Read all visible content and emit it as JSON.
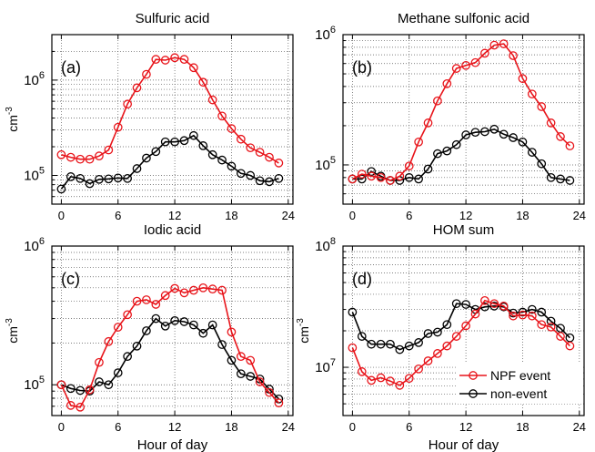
{
  "figure": {
    "xlabel": "Hour of day",
    "colors": {
      "npf": "#e8141a",
      "non": "#000000"
    }
  },
  "chart_data": [
    {
      "id": "a",
      "type": "line",
      "title": "Sulfuric acid",
      "panel_label": "(a)",
      "ylabel": "cm",
      "ylabel_exp": "-3",
      "yscale": "log",
      "ylim": [
        50000,
        3000000
      ],
      "yticks": [
        {
          "base": "10",
          "exp": "5",
          "value": 100000
        },
        {
          "base": "10",
          "exp": "6",
          "value": 1000000
        }
      ],
      "xlim": [
        -1,
        24.5
      ],
      "xticks": [
        0,
        6,
        12,
        18,
        24
      ],
      "xlabel": "",
      "x": [
        0,
        1,
        2,
        3,
        4,
        5,
        6,
        7,
        8,
        9,
        10,
        11,
        12,
        13,
        14,
        15,
        16,
        17,
        18,
        19,
        20,
        21,
        22,
        23
      ],
      "series": [
        {
          "key": "npf",
          "values": [
            165000,
            155000,
            148000,
            148000,
            160000,
            185000,
            320000,
            560000,
            830000,
            1150000,
            1650000,
            1620000,
            1720000,
            1650000,
            1350000,
            950000,
            620000,
            420000,
            310000,
            240000,
            195000,
            175000,
            155000,
            135000
          ]
        },
        {
          "key": "non",
          "values": [
            72000,
            97000,
            93000,
            82000,
            91000,
            92000,
            94000,
            93000,
            118000,
            152000,
            178000,
            225000,
            225000,
            232000,
            262000,
            205000,
            165000,
            145000,
            125000,
            105000,
            100000,
            88000,
            86000,
            93000
          ]
        }
      ],
      "legend": null
    },
    {
      "id": "b",
      "type": "line",
      "title": "Methane sulfonic acid",
      "panel_label": "(b)",
      "ylabel": "",
      "ylabel_exp": "",
      "yscale": "log",
      "ylim": [
        50000,
        1000000
      ],
      "yticks": [
        {
          "base": "10",
          "exp": "5",
          "value": 100000
        },
        {
          "base": "10",
          "exp": "6",
          "value": 1000000
        }
      ],
      "xlim": [
        -1,
        24.5
      ],
      "xticks": [
        0,
        6,
        12,
        18,
        24
      ],
      "xlabel": "",
      "x": [
        0,
        1,
        2,
        3,
        4,
        5,
        6,
        7,
        8,
        9,
        10,
        11,
        12,
        13,
        14,
        15,
        16,
        17,
        18,
        19,
        20,
        21,
        22,
        23
      ],
      "series": [
        {
          "key": "npf",
          "values": [
            78000,
            85000,
            82000,
            80000,
            76000,
            82000,
            98000,
            150000,
            210000,
            310000,
            420000,
            550000,
            580000,
            610000,
            720000,
            830000,
            850000,
            690000,
            460000,
            350000,
            280000,
            210000,
            165000,
            140000
          ]
        },
        {
          "key": "non",
          "values": [
            78000,
            78000,
            89000,
            82000,
            76000,
            76000,
            80000,
            78000,
            93000,
            122000,
            128000,
            143000,
            170000,
            178000,
            180000,
            188000,
            172000,
            162000,
            150000,
            125000,
            102000,
            80000,
            78000,
            76000
          ]
        }
      ],
      "legend": null
    },
    {
      "id": "c",
      "type": "line",
      "title": "Iodic acid",
      "panel_label": "(c)",
      "ylabel": "cm",
      "ylabel_exp": "-3",
      "yscale": "log",
      "ylim": [
        60000,
        1000000
      ],
      "yticks": [
        {
          "base": "10",
          "exp": "5",
          "value": 100000
        },
        {
          "base": "10",
          "exp": "6",
          "value": 1000000
        }
      ],
      "xlim": [
        -1,
        24.5
      ],
      "xticks": [
        0,
        6,
        12,
        18,
        24
      ],
      "xlabel": "Hour of day",
      "x": [
        0,
        1,
        2,
        3,
        4,
        5,
        6,
        7,
        8,
        9,
        10,
        11,
        12,
        13,
        14,
        15,
        16,
        17,
        18,
        19,
        20,
        21,
        22,
        23
      ],
      "series": [
        {
          "key": "npf",
          "values": [
            100000,
            71000,
            69000,
            92000,
            145000,
            205000,
            260000,
            320000,
            400000,
            410000,
            380000,
            440000,
            495000,
            460000,
            480000,
            500000,
            490000,
            480000,
            240000,
            160000,
            150000,
            105000,
            88000,
            74000
          ]
        },
        {
          "key": "non",
          "values": [
            100000,
            94000,
            91000,
            90000,
            105000,
            100000,
            122000,
            160000,
            190000,
            245000,
            300000,
            265000,
            290000,
            285000,
            270000,
            235000,
            270000,
            195000,
            150000,
            120000,
            115000,
            110000,
            93000,
            79000
          ]
        }
      ],
      "legend": null
    },
    {
      "id": "d",
      "type": "line",
      "title": "HOM sum",
      "panel_label": "(d)",
      "ylabel": "cm",
      "ylabel_exp": "-3",
      "yscale": "log",
      "ylim": [
        4000000,
        100000000
      ],
      "yticks": [
        {
          "base": "10",
          "exp": "7",
          "value": 10000000
        },
        {
          "base": "10",
          "exp": "8",
          "value": 100000000
        }
      ],
      "xlim": [
        -1,
        24.5
      ],
      "xticks": [
        0,
        6,
        12,
        18,
        24
      ],
      "xlabel": "Hour of day",
      "x": [
        0,
        1,
        2,
        3,
        4,
        5,
        6,
        7,
        8,
        9,
        10,
        11,
        12,
        13,
        14,
        15,
        16,
        17,
        18,
        19,
        20,
        21,
        22,
        23
      ],
      "series": [
        {
          "key": "npf",
          "values": [
            14500000,
            9200000,
            7800000,
            8200000,
            7700000,
            7100000,
            8100000,
            9700000,
            11300000,
            13000000,
            15000000,
            18000000,
            22000000,
            27500000,
            35500000,
            33500000,
            32000000,
            26500000,
            27000000,
            26500000,
            22500000,
            21500000,
            18000000,
            15000000
          ]
        },
        {
          "key": "non",
          "values": [
            28500000,
            18000000,
            15500000,
            15500000,
            15500000,
            14000000,
            15000000,
            16000000,
            19000000,
            19500000,
            22500000,
            33500000,
            33000000,
            30000000,
            31500000,
            32000000,
            31500000,
            28000000,
            28500000,
            30000000,
            28500000,
            24000000,
            21000000,
            17500000
          ]
        }
      ],
      "legend": {
        "position": "bottom-right",
        "entries": [
          {
            "key": "npf",
            "label": "NPF event"
          },
          {
            "key": "non",
            "label": "non-event"
          }
        ]
      }
    }
  ]
}
